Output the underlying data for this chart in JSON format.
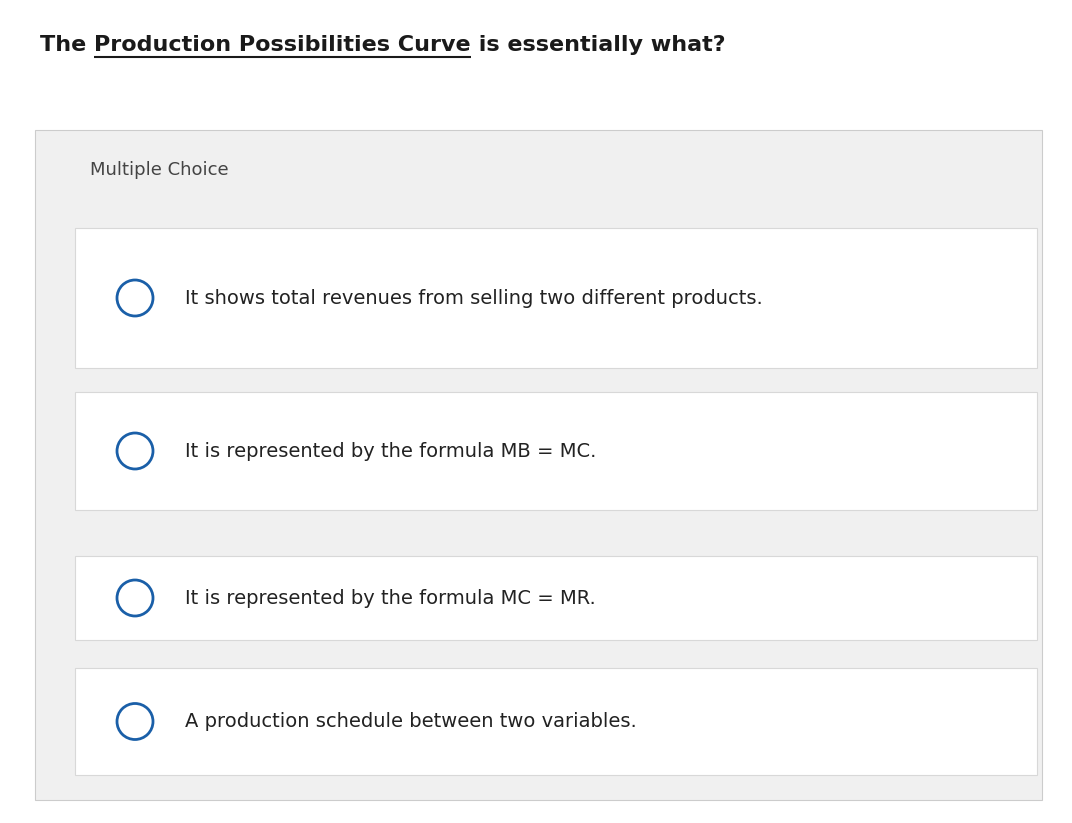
{
  "title_plain": "The ",
  "title_underlined": "Production Possibilities Curve",
  "title_rest": " is essentially what?",
  "subtitle": "Multiple Choice",
  "options": [
    "It shows total revenues from selling two different products.",
    "It is represented by the formula MB = MC.",
    "It is represented by the formula MC = MR.",
    "A production schedule between two variables."
  ],
  "bg_color": "#ffffff",
  "panel_bg": "#f0f0f0",
  "option_bg": "#ffffff",
  "option_border": "#d8d8d8",
  "gap_color": "#e8e8e8",
  "circle_color": "#1a5fa8",
  "title_color": "#1a1a1a",
  "subtitle_color": "#444444",
  "option_text_color": "#222222",
  "title_fontsize": 16,
  "subtitle_fontsize": 13,
  "option_fontsize": 14,
  "fig_width": 10.72,
  "fig_height": 8.23,
  "dpi": 100
}
